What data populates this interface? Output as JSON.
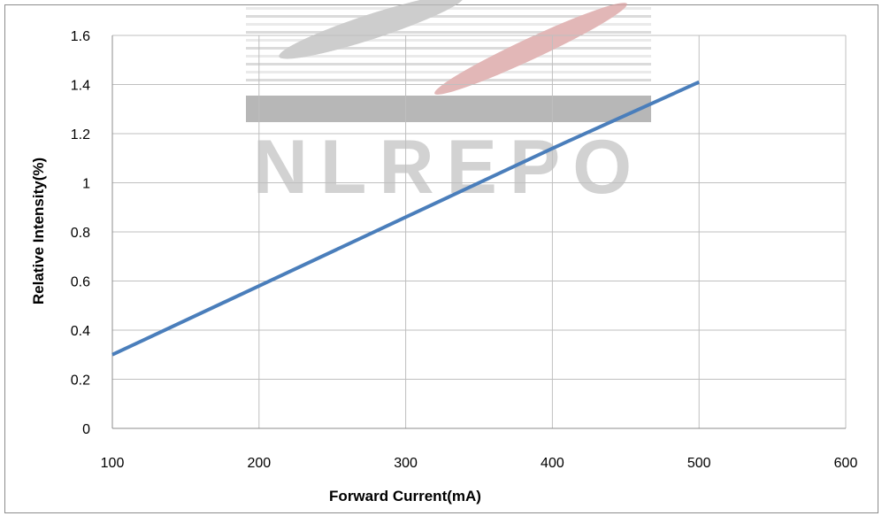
{
  "chart_data": {
    "type": "line",
    "xlabel": "Forward Current(mA)",
    "ylabel": "Relative Intensity(%)",
    "xlim": [
      100,
      600
    ],
    "ylim": [
      0,
      1.6
    ],
    "x_ticks": [
      "100",
      "200",
      "300",
      "400",
      "500",
      "600"
    ],
    "y_ticks": [
      "0",
      "0.2",
      "0.4",
      "0.6",
      "0.8",
      "1",
      "1.2",
      "1.4",
      "1.6"
    ],
    "grid": true,
    "legend": "none",
    "series": [
      {
        "x": [
          100,
          200,
          300,
          400,
          500
        ],
        "y": [
          0.3,
          0.58,
          0.86,
          1.14,
          1.41
        ],
        "color": "#4a7ebb"
      }
    ],
    "watermark_text": "NLREPO"
  }
}
